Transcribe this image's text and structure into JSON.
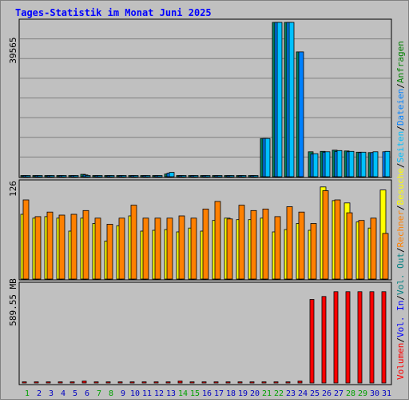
{
  "chart_data": {
    "type": "bar",
    "title": "Tages-Statistik im Monat Juni 2025",
    "categories": [
      "1",
      "2",
      "3",
      "4",
      "5",
      "6",
      "7",
      "8",
      "9",
      "10",
      "11",
      "12",
      "13",
      "14",
      "15",
      "16",
      "17",
      "18",
      "19",
      "20",
      "21",
      "22",
      "23",
      "24",
      "25",
      "26",
      "27",
      "28",
      "29",
      "30",
      "31"
    ],
    "weekend_days": [
      "1",
      "7",
      "8",
      "14",
      "15",
      "21",
      "22",
      "28",
      "29"
    ],
    "panels": [
      {
        "id": "top",
        "axis_max_label": "39565",
        "ylim": [
          0,
          39565
        ],
        "series": [
          {
            "name": "Anfragen",
            "color": "#00805c",
            "values": [
              60,
              80,
              180,
              120,
              80,
              620,
              70,
              70,
              90,
              110,
              140,
              110,
              700,
              200,
              150,
              120,
              180,
              160,
              170,
              220,
              9800,
              39565,
              39565,
              32000,
              6400,
              6500,
              6800,
              6600,
              6300,
              6200,
              0
            ]
          },
          {
            "name": "Dateien",
            "color": "#0080ff",
            "values": [
              50,
              60,
              120,
              100,
              60,
              450,
              60,
              60,
              70,
              90,
              110,
              80,
              900,
              180,
              130,
              100,
              150,
              130,
              150,
              190,
              9800,
              39565,
              39565,
              32000,
              5800,
              6300,
              6500,
              6400,
              6200,
              6200,
              6400
            ]
          },
          {
            "name": "Seiten",
            "color": "#00c0ff",
            "values": [
              40,
              40,
              80,
              70,
              40,
              300,
              40,
              40,
              50,
              60,
              70,
              60,
              1100,
              120,
              90,
              70,
              100,
              90,
              100,
              120,
              9800,
              39565,
              39565,
              0,
              5900,
              6400,
              6700,
              6500,
              6300,
              6400,
              6500
            ]
          }
        ]
      },
      {
        "id": "middle",
        "axis_max_label": "126",
        "ylim": [
          0,
          126
        ],
        "series": [
          {
            "name": "Besuche",
            "color": "#ffff00",
            "values": [
              85,
              80,
              82,
              80,
              63,
              80,
              73,
              50,
              70,
              83,
              63,
              64,
              65,
              62,
              67,
              63,
              77,
              80,
              78,
              78,
              80,
              62,
              65,
              73,
              64,
              121,
              103,
              100,
              75,
              67,
              117
            ]
          },
          {
            "name": "Rechner",
            "color": "#ff8000",
            "values": [
              104,
              82,
              88,
              84,
              85,
              90,
              80,
              72,
              80,
              97,
              80,
              80,
              80,
              83,
              80,
              92,
              102,
              79,
              97,
              90,
              92,
              82,
              95,
              88,
              73,
              116,
              104,
              87,
              77,
              80,
              60
            ]
          }
        ]
      },
      {
        "id": "bottom",
        "axis_max_label": "589.55 MB",
        "ylim": [
          0,
          589.55
        ],
        "series": [
          {
            "name": "Volumen",
            "color": "#ff0000",
            "values": [
              2,
              2,
              2,
              2,
              2,
              12,
              2,
              2,
              2,
              2,
              7,
              7,
              2,
              12,
              7,
              2,
              7,
              2,
              2,
              7,
              7,
              2,
              2,
              12,
              505,
              523,
              552,
              552,
              552,
              552,
              552
            ]
          }
        ]
      }
    ],
    "legend_right": [
      "Volumen",
      "/",
      "Vol. In",
      "/",
      "Vol. Out",
      "/",
      "Rechner",
      "/",
      "Besuche",
      "/",
      "Seiten",
      "/",
      "Dateien",
      "/",
      "Anfragen"
    ],
    "legend_colors": [
      "#ff0000",
      "#000000",
      "#0000ff",
      "#000000",
      "#008080",
      "#000000",
      "#ff8000",
      "#000000",
      "#ffff00",
      "#000000",
      "#00c0ff",
      "#000000",
      "#0080ff",
      "#000000",
      "#008000"
    ],
    "colors": {
      "weekday_label": "#0000c0",
      "weekend_label": "#00a000",
      "title": "#0000ff",
      "plot_bg": "#c0c0c0"
    }
  }
}
